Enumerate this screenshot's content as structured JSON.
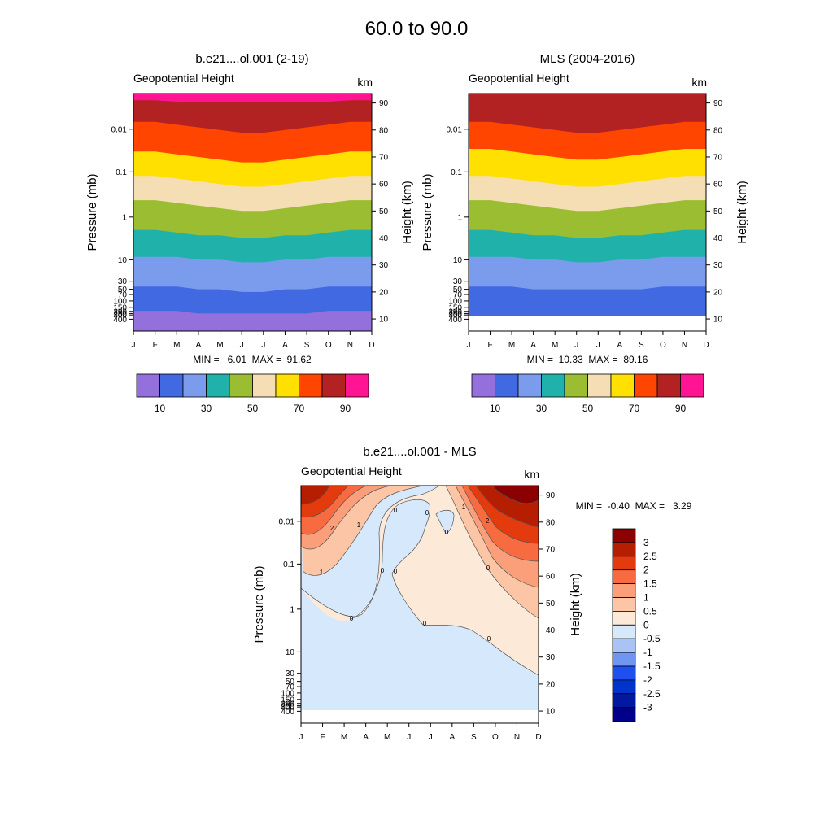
{
  "main_title": "60.0 to  90.0",
  "colors": {
    "model_levels": [
      "#9370db",
      "#4169e1",
      "#7b9ced",
      "#20b2aa",
      "#9abd32",
      "#f5deb3",
      "#ffe000",
      "#ff4500",
      "#b22222",
      "#ff1493"
    ],
    "diff_levels": [
      "#00008b",
      "#0019a0",
      "#0033cc",
      "#1e50f0",
      "#6f96f0",
      "#a9c3f5",
      "#d6e8fb",
      "#fde9d8",
      "#fcc5a5",
      "#fa9f7a",
      "#f86a40",
      "#e33a0e",
      "#b51e00",
      "#8b0000"
    ],
    "contour_line": "#555555"
  },
  "chart_data": [
    {
      "type": "contour",
      "id": "model",
      "title": "b.e21....ol.001 (2-19)",
      "subtitle_left": "Geopotential Height",
      "subtitle_right": "km",
      "xlabel": "",
      "ylabel": "Pressure (mb)",
      "ylabel_right": "Height (km)",
      "x_ticks": [
        "J",
        "F",
        "M",
        "A",
        "M",
        "J",
        "J",
        "A",
        "S",
        "O",
        "N",
        "D"
      ],
      "y_ticks_pressure": [
        "0.01",
        "0.1",
        "1",
        "10",
        "30",
        "50",
        "70",
        "100",
        "150",
        "200",
        "250",
        "300",
        "400"
      ],
      "y_ticks_height": [
        "90",
        "80",
        "70",
        "60",
        "50",
        "40",
        "30",
        "20",
        "10"
      ],
      "stats": "MIN =   6.01  MAX =  91.62",
      "levels_km": [
        10,
        20,
        30,
        40,
        50,
        60,
        70,
        80,
        90
      ],
      "band_tops_km": [
        [
          13,
          22,
          33,
          43,
          54,
          63,
          72,
          83,
          91
        ],
        [
          13,
          22,
          33,
          43,
          54,
          63,
          72,
          83,
          91
        ],
        [
          13,
          22,
          33,
          42,
          53,
          62,
          71,
          82,
          90.5
        ],
        [
          12,
          21,
          32,
          41,
          52,
          61,
          70,
          81,
          90.4
        ],
        [
          12,
          21,
          32,
          41,
          51,
          60,
          69,
          80,
          90.3
        ],
        [
          12,
          20,
          31,
          40,
          50,
          59,
          68,
          79,
          90.2
        ],
        [
          12,
          20,
          31,
          40,
          50,
          59,
          68,
          79,
          90.2
        ],
        [
          12,
          21,
          32,
          41,
          51,
          60,
          69,
          80,
          90.3
        ],
        [
          12,
          21,
          32,
          41,
          52,
          61,
          70,
          81,
          90.4
        ],
        [
          13,
          22,
          33,
          42,
          53,
          62,
          71,
          82,
          90.5
        ],
        [
          13,
          22,
          33,
          43,
          54,
          63,
          72,
          83,
          91
        ],
        [
          13,
          22,
          33,
          43,
          54,
          63,
          72,
          83,
          91
        ]
      ],
      "colorbar_labels": [
        "10",
        "30",
        "50",
        "70",
        "90"
      ]
    },
    {
      "type": "contour",
      "id": "mls",
      "title": "MLS (2004-2016)",
      "subtitle_left": "Geopotential Height",
      "subtitle_right": "km",
      "xlabel": "",
      "ylabel": "Pressure (mb)",
      "ylabel_right": "Height (km)",
      "x_ticks": [
        "J",
        "F",
        "M",
        "A",
        "M",
        "J",
        "J",
        "A",
        "S",
        "O",
        "N",
        "D"
      ],
      "y_ticks_pressure": [
        "0.01",
        "0.1",
        "1",
        "10",
        "30",
        "50",
        "70",
        "100",
        "150",
        "200",
        "250",
        "300",
        "400"
      ],
      "y_ticks_height": [
        "90",
        "80",
        "70",
        "60",
        "50",
        "40",
        "30",
        "20",
        "10"
      ],
      "stats": "MIN =  10.33  MAX =  89.16",
      "levels_km": [
        10,
        20,
        30,
        40,
        50,
        60,
        70,
        80,
        90
      ],
      "band_tops_km": [
        [
          null,
          22,
          33,
          43,
          54,
          63,
          73,
          83,
          90
        ],
        [
          null,
          22,
          33,
          43,
          54,
          63,
          73,
          83,
          90
        ],
        [
          null,
          22,
          33,
          42,
          53,
          62,
          72,
          82,
          90
        ],
        [
          null,
          21,
          32,
          41,
          52,
          61,
          71,
          81,
          90
        ],
        [
          null,
          21,
          32,
          41,
          51,
          60,
          70,
          80,
          90
        ],
        [
          null,
          21,
          31,
          40,
          50,
          59,
          69,
          79,
          90
        ],
        [
          null,
          21,
          31,
          40,
          50,
          59,
          69,
          79,
          90
        ],
        [
          null,
          21,
          32,
          41,
          51,
          60,
          70,
          80,
          90
        ],
        [
          null,
          21,
          32,
          41,
          52,
          61,
          71,
          81,
          90
        ],
        [
          null,
          22,
          33,
          42,
          53,
          62,
          72,
          82,
          90
        ],
        [
          null,
          22,
          33,
          43,
          54,
          63,
          73,
          83,
          90
        ],
        [
          null,
          22,
          33,
          43,
          54,
          63,
          73,
          83,
          90
        ]
      ],
      "colorbar_labels": [
        "10",
        "30",
        "50",
        "70",
        "90"
      ]
    },
    {
      "type": "contour",
      "id": "diff",
      "title": "b.e21....ol.001 - MLS",
      "subtitle_left": "Geopotential Height",
      "subtitle_right": "km",
      "xlabel": "",
      "ylabel": "Pressure (mb)",
      "ylabel_right": "Height (km)",
      "x_ticks": [
        "J",
        "F",
        "M",
        "A",
        "M",
        "J",
        "J",
        "A",
        "S",
        "O",
        "N",
        "D"
      ],
      "y_ticks_pressure": [
        "0.01",
        "0.1",
        "1",
        "10",
        "30",
        "50",
        "70",
        "100",
        "150",
        "200",
        "250",
        "300",
        "400"
      ],
      "y_ticks_height": [
        "90",
        "80",
        "70",
        "60",
        "50",
        "40",
        "30",
        "20",
        "10"
      ],
      "stats": "MIN =  -0.40  MAX =   3.29",
      "levels": [
        -3,
        -2.5,
        -2,
        -1.5,
        -1,
        -0.5,
        0,
        0.5,
        1,
        1.5,
        2,
        2.5,
        3
      ],
      "contour_labels": [
        "2",
        "1",
        "0",
        "0",
        "0",
        "0",
        "0",
        "0",
        "1",
        "2",
        "0",
        "0",
        "0",
        "1"
      ],
      "colorbar_labels": [
        "3",
        "2.5",
        "2",
        "1.5",
        "1",
        "0.5",
        "0",
        "-0.5",
        "-1",
        "-1.5",
        "-2",
        "-2.5",
        "-3"
      ]
    }
  ]
}
